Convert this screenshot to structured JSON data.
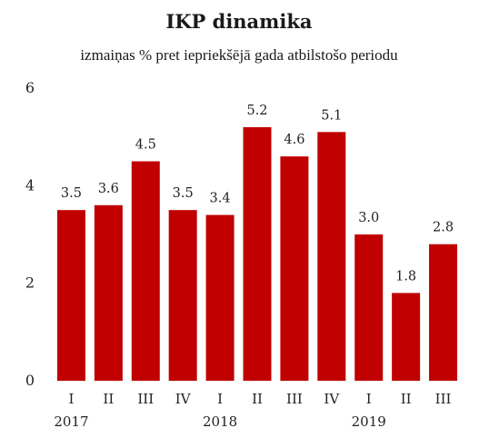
{
  "chart_data": {
    "type": "bar",
    "title": "IKP dinamika",
    "subtitle": "izmaiņas % pret iepriekšējā gada atbilstošo periodu",
    "categories": [
      "I",
      "II",
      "III",
      "IV",
      "I",
      "II",
      "III",
      "IV",
      "I",
      "II",
      "III"
    ],
    "years": [
      {
        "label": "2017",
        "start_index": 0
      },
      {
        "label": "2018",
        "start_index": 4
      },
      {
        "label": "2019",
        "start_index": 8
      }
    ],
    "values": [
      3.5,
      3.6,
      4.5,
      3.5,
      3.4,
      5.2,
      4.6,
      5.1,
      3.0,
      1.8,
      2.8
    ],
    "data_labels": [
      "3.5",
      "3.6",
      "4.5",
      "3.5",
      "3.4",
      "5.2",
      "4.6",
      "5.1",
      "3.0",
      "1.8",
      "2.8"
    ],
    "ylim": [
      0,
      6
    ],
    "yticks": [
      "0",
      "2",
      "4",
      "6"
    ],
    "grid": false,
    "bar_color": "#c00000",
    "xlabel": "",
    "ylabel": ""
  }
}
